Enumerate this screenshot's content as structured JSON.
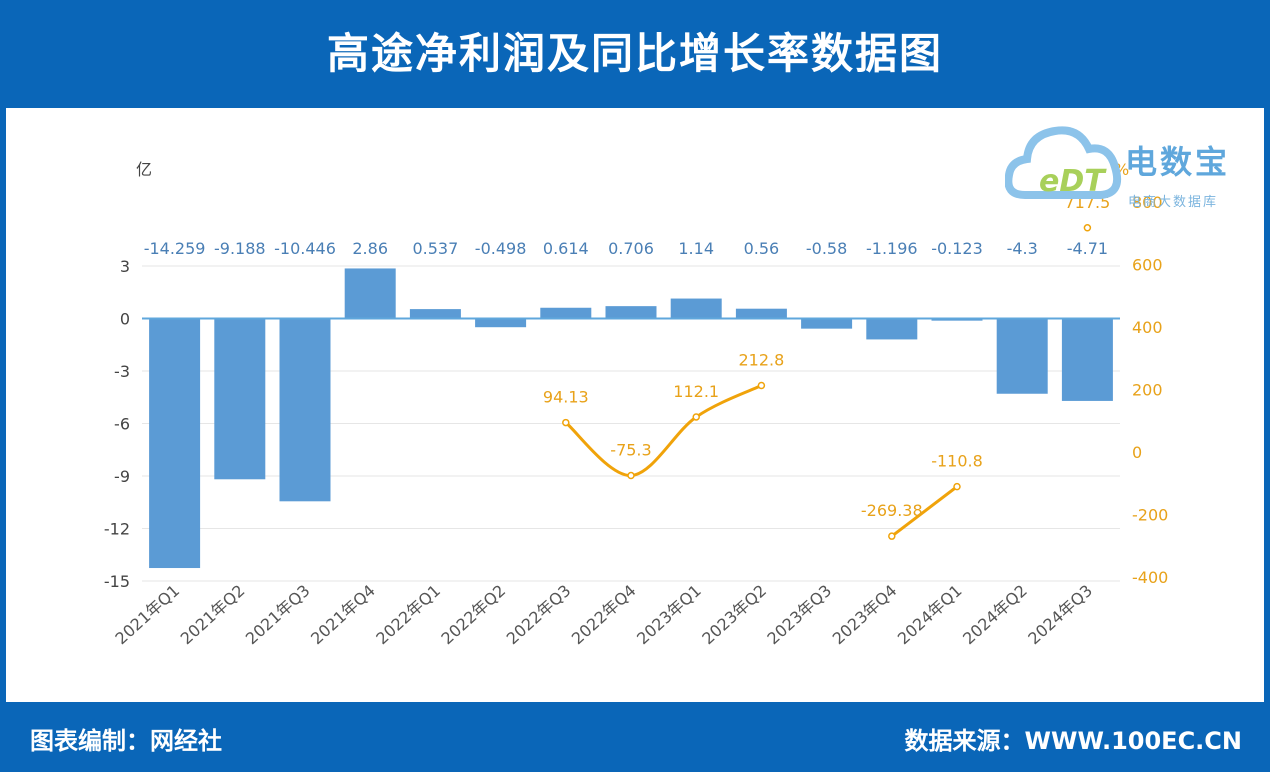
{
  "header": {
    "title": "高途净利润及同比增长率数据图"
  },
  "footer": {
    "left": "图表编制：网经社",
    "right": "数据来源：WWW.100EC.CN"
  },
  "watermark": {
    "brand": "电数宝",
    "sub": "电商大数据库",
    "logo_text": "eDT"
  },
  "colors": {
    "header_bg": "#0a66b8",
    "bar": "#5b9bd5",
    "line": "#f0a30a",
    "axis_right": "#e8a21a"
  },
  "chart_data": {
    "type": "bar",
    "categories": [
      "2021年Q1",
      "2021年Q2",
      "2021年Q3",
      "2021年Q4",
      "2022年Q1",
      "2022年Q2",
      "2022年Q3",
      "2022年Q4",
      "2023年Q1",
      "2023年Q2",
      "2023年Q3",
      "2023年Q4",
      "2024年Q1",
      "2024年Q2",
      "2024年Q3"
    ],
    "series": [
      {
        "name": "",
        "type": "bar",
        "axis": "left",
        "values": [
          -14.259,
          -9.188,
          -10.446,
          2.86,
          0.537,
          -0.498,
          0.614,
          0.706,
          1.14,
          0.56,
          -0.58,
          -1.196,
          -0.123,
          -4.3,
          -4.71
        ],
        "labels": [
          "-14.259",
          "-9.188",
          "-10.446",
          "2.86",
          "0.537",
          "-0.498",
          "0.614",
          "0.706",
          "1.14",
          "0.56",
          "-0.58",
          "-1.196",
          "-0.123",
          "-4.3",
          "-4.71"
        ]
      },
      {
        "name": "",
        "type": "line",
        "axis": "right",
        "values": [
          null,
          null,
          null,
          null,
          null,
          null,
          94.13,
          -75.3,
          112.1,
          212.8,
          null,
          -269.38,
          -110.8,
          null,
          717.5
        ],
        "labels": [
          "",
          "",
          "",
          "",
          "",
          "",
          "94.13",
          "-75.3",
          "112.1",
          "212.8",
          "",
          "-269.38",
          "-110.8",
          "",
          "717.5"
        ]
      }
    ],
    "y_left": {
      "unit": "亿",
      "ylim": [
        -15,
        3
      ],
      "ticks": [
        "3",
        "0",
        "-3",
        "-6",
        "-9",
        "-12",
        "-15"
      ],
      "tick_values": [
        3,
        0,
        -3,
        -6,
        -9,
        -12,
        -15
      ]
    },
    "y_right": {
      "unit": "%",
      "ylim": [
        -400,
        800
      ],
      "ticks": [
        "800",
        "600",
        "400",
        "200",
        "0",
        "-200",
        "-400"
      ],
      "tick_values": [
        800,
        600,
        400,
        200,
        0,
        -200,
        -400
      ]
    },
    "grid": true
  }
}
